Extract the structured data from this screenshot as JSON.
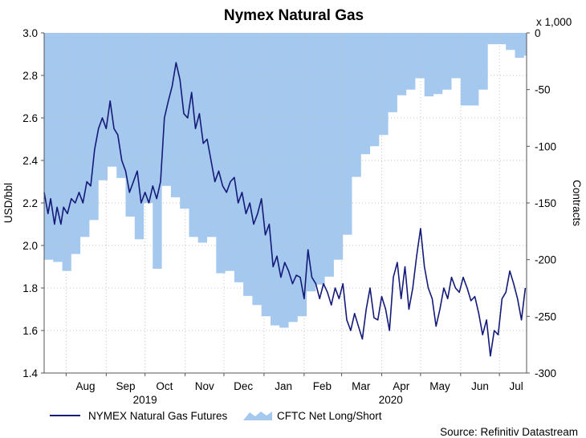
{
  "chart_data": {
    "type": "line",
    "title": "Nymex Natural Gas",
    "source": "Source: Refinitiv Datastream",
    "colors": {
      "futures_line": "#141a78",
      "cftc_area": "#a5c8ef"
    },
    "x_axis": {
      "months": [
        "Aug",
        "Sep",
        "Oct",
        "Nov",
        "Dec",
        "Jan",
        "Feb",
        "Mar",
        "Apr",
        "May",
        "Jun",
        "Jul"
      ],
      "years": [
        "2019",
        "2020"
      ],
      "range": [
        "2019-07-15",
        "2020-07-22"
      ]
    },
    "y_left": {
      "label": "USD/bbl",
      "ticks": [
        "1.4",
        "1.6",
        "1.8",
        "2.0",
        "2.2",
        "2.4",
        "2.6",
        "2.8",
        "3.0"
      ],
      "range": [
        1.4,
        3.0
      ]
    },
    "y_right": {
      "label": "Contracts",
      "multiplier": "x 1,000",
      "ticks": [
        "0",
        "-50",
        "-100",
        "-150",
        "-200",
        "-250",
        "-300"
      ],
      "range": [
        -300,
        0
      ]
    },
    "legend": {
      "position": "bottom-left",
      "entries": [
        "NYMEX Natural Gas Futures",
        "CFTC Net Long/Short"
      ]
    },
    "series": [
      {
        "name": "NYMEX Natural Gas Futures",
        "axis": "left",
        "x": [
          "2019-07-15",
          "2019-07-18",
          "2019-07-20",
          "2019-07-23",
          "2019-07-25",
          "2019-07-28",
          "2019-07-30",
          "2019-08-02",
          "2019-08-05",
          "2019-08-08",
          "2019-08-11",
          "2019-08-14",
          "2019-08-17",
          "2019-08-20",
          "2019-08-23",
          "2019-08-26",
          "2019-08-29",
          "2019-09-01",
          "2019-09-04",
          "2019-09-07",
          "2019-09-10",
          "2019-09-13",
          "2019-09-16",
          "2019-09-19",
          "2019-09-22",
          "2019-09-25",
          "2019-09-28",
          "2019-10-01",
          "2019-10-04",
          "2019-10-07",
          "2019-10-10",
          "2019-10-13",
          "2019-10-16",
          "2019-10-19",
          "2019-10-22",
          "2019-10-25",
          "2019-10-28",
          "2019-10-31",
          "2019-11-03",
          "2019-11-06",
          "2019-11-09",
          "2019-11-12",
          "2019-11-15",
          "2019-11-18",
          "2019-11-21",
          "2019-11-24",
          "2019-11-27",
          "2019-11-30",
          "2019-12-03",
          "2019-12-06",
          "2019-12-09",
          "2019-12-12",
          "2019-12-15",
          "2019-12-18",
          "2019-12-21",
          "2019-12-24",
          "2019-12-27",
          "2019-12-30",
          "2020-01-02",
          "2020-01-05",
          "2020-01-08",
          "2020-01-11",
          "2020-01-14",
          "2020-01-17",
          "2020-01-20",
          "2020-01-23",
          "2020-01-26",
          "2020-01-29",
          "2020-02-01",
          "2020-02-04",
          "2020-02-07",
          "2020-02-10",
          "2020-02-13",
          "2020-02-16",
          "2020-02-19",
          "2020-02-22",
          "2020-02-25",
          "2020-02-28",
          "2020-03-02",
          "2020-03-05",
          "2020-03-08",
          "2020-03-11",
          "2020-03-14",
          "2020-03-17",
          "2020-03-20",
          "2020-03-23",
          "2020-03-26",
          "2020-03-29",
          "2020-04-01",
          "2020-04-04",
          "2020-04-07",
          "2020-04-10",
          "2020-04-13",
          "2020-04-16",
          "2020-04-19",
          "2020-04-22",
          "2020-04-25",
          "2020-04-28",
          "2020-05-01",
          "2020-05-04",
          "2020-05-07",
          "2020-05-10",
          "2020-05-13",
          "2020-05-16",
          "2020-05-19",
          "2020-05-22",
          "2020-05-25",
          "2020-05-28",
          "2020-05-31",
          "2020-06-03",
          "2020-06-06",
          "2020-06-09",
          "2020-06-12",
          "2020-06-15",
          "2020-06-18",
          "2020-06-21",
          "2020-06-24",
          "2020-06-27",
          "2020-06-30",
          "2020-07-03",
          "2020-07-06",
          "2020-07-09",
          "2020-07-12",
          "2020-07-15",
          "2020-07-18",
          "2020-07-21"
        ],
        "values": [
          2.25,
          2.15,
          2.22,
          2.1,
          2.18,
          2.1,
          2.18,
          2.15,
          2.22,
          2.2,
          2.25,
          2.2,
          2.3,
          2.28,
          2.45,
          2.55,
          2.6,
          2.55,
          2.68,
          2.55,
          2.52,
          2.4,
          2.35,
          2.25,
          2.3,
          2.35,
          2.2,
          2.25,
          2.2,
          2.28,
          2.22,
          2.3,
          2.6,
          2.68,
          2.75,
          2.86,
          2.78,
          2.62,
          2.6,
          2.72,
          2.55,
          2.62,
          2.48,
          2.5,
          2.4,
          2.3,
          2.35,
          2.28,
          2.25,
          2.3,
          2.32,
          2.2,
          2.25,
          2.15,
          2.2,
          2.1,
          2.15,
          2.22,
          2.05,
          2.1,
          1.9,
          1.95,
          1.85,
          1.92,
          1.88,
          1.82,
          1.86,
          1.85,
          1.75,
          1.98,
          1.85,
          1.82,
          1.75,
          1.82,
          1.78,
          1.72,
          1.8,
          1.75,
          1.82,
          1.65,
          1.6,
          1.68,
          1.62,
          1.56,
          1.7,
          1.8,
          1.66,
          1.65,
          1.76,
          1.7,
          1.6,
          1.85,
          1.92,
          1.75,
          1.9,
          1.7,
          1.8,
          1.95,
          2.08,
          1.9,
          1.8,
          1.75,
          1.62,
          1.7,
          1.8,
          1.75,
          1.85,
          1.8,
          1.78,
          1.85,
          1.8,
          1.74,
          1.76,
          1.68,
          1.58,
          1.65,
          1.48,
          1.6,
          1.58,
          1.75,
          1.78,
          1.88,
          1.82,
          1.75,
          1.65,
          1.8
        ]
      },
      {
        "name": "CFTC Net Long/Short",
        "axis": "right",
        "x": [
          "2019-07-15",
          "2019-07-22",
          "2019-07-29",
          "2019-08-05",
          "2019-08-12",
          "2019-08-19",
          "2019-08-26",
          "2019-09-02",
          "2019-09-09",
          "2019-09-16",
          "2019-09-23",
          "2019-09-30",
          "2019-10-07",
          "2019-10-14",
          "2019-10-21",
          "2019-10-28",
          "2019-11-04",
          "2019-11-11",
          "2019-11-18",
          "2019-11-25",
          "2019-12-02",
          "2019-12-09",
          "2019-12-16",
          "2019-12-23",
          "2019-12-30",
          "2020-01-06",
          "2020-01-13",
          "2020-01-20",
          "2020-01-27",
          "2020-02-03",
          "2020-02-10",
          "2020-02-17",
          "2020-02-24",
          "2020-03-02",
          "2020-03-09",
          "2020-03-16",
          "2020-03-23",
          "2020-03-30",
          "2020-04-06",
          "2020-04-13",
          "2020-04-20",
          "2020-04-27",
          "2020-05-04",
          "2020-05-11",
          "2020-05-18",
          "2020-05-25",
          "2020-06-01",
          "2020-06-08",
          "2020-06-15",
          "2020-06-22",
          "2020-06-29",
          "2020-07-06",
          "2020-07-13",
          "2020-07-20"
        ],
        "values": [
          -200,
          -202,
          -210,
          -195,
          -180,
          -165,
          -130,
          -118,
          -128,
          -162,
          -182,
          -150,
          -208,
          -135,
          -145,
          -155,
          -180,
          -185,
          -180,
          -212,
          -210,
          -220,
          -232,
          -240,
          -250,
          -258,
          -260,
          -255,
          -250,
          -228,
          -222,
          -215,
          -200,
          -178,
          -127,
          -107,
          -100,
          -90,
          -70,
          -55,
          -50,
          -40,
          -56,
          -54,
          -50,
          -40,
          -64,
          -64,
          -50,
          -10,
          -10,
          -15,
          -22,
          -20
        ]
      }
    ]
  }
}
